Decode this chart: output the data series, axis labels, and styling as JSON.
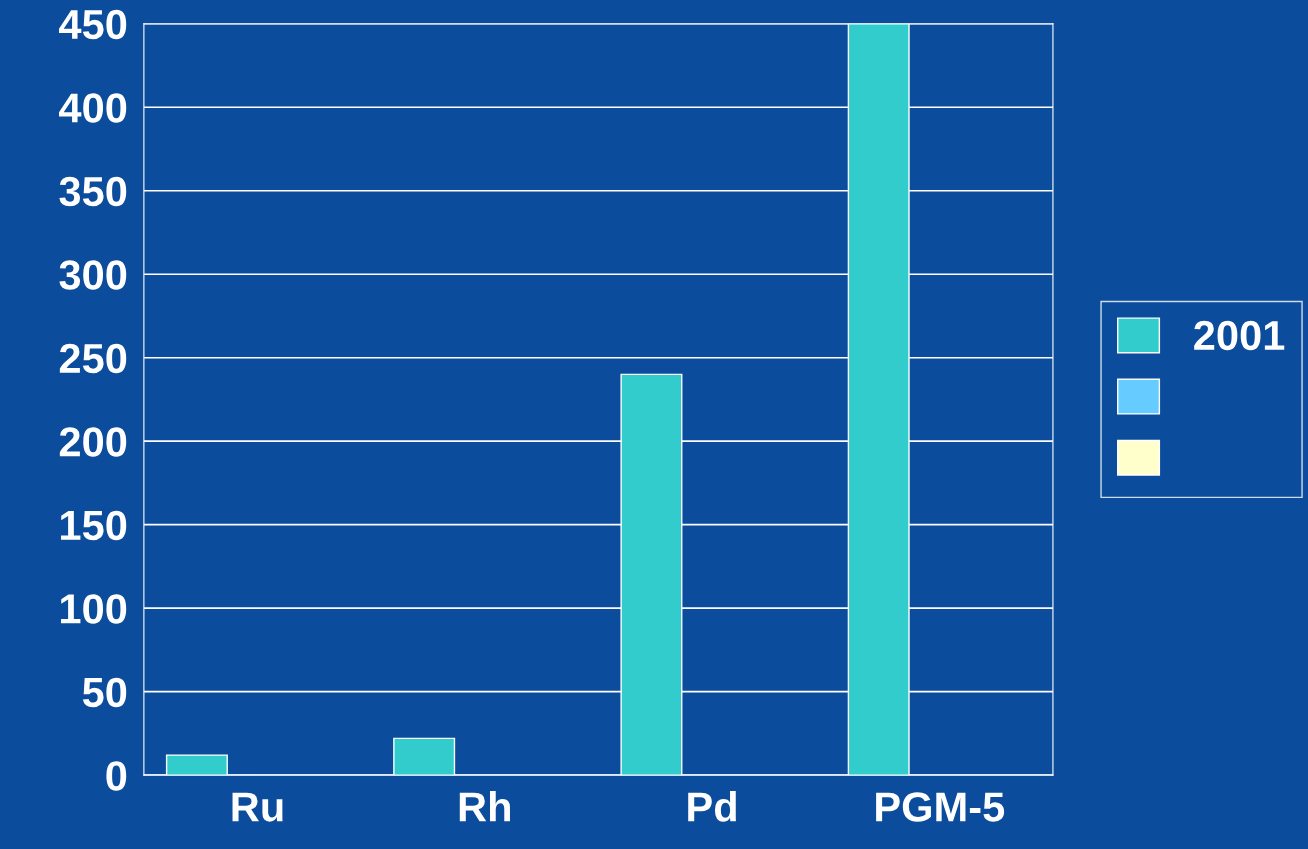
{
  "chart_data": {
    "type": "bar",
    "categories": [
      "Ru",
      "Rh",
      "Pd",
      "PGM-5"
    ],
    "series": [
      {
        "name": "2001",
        "color": "#33cccc",
        "values": [
          12,
          22,
          240,
          450
        ]
      },
      {
        "color": "#66ccff",
        "values": [
          null,
          null,
          null,
          null
        ]
      },
      {
        "color": "#ffffcc",
        "values": [
          null,
          null,
          null,
          null
        ]
      }
    ],
    "ylim": [
      0,
      450
    ],
    "yticks": [
      0,
      50,
      100,
      150,
      200,
      250,
      300,
      350,
      400,
      450
    ],
    "grid": "y",
    "legend": "right"
  }
}
